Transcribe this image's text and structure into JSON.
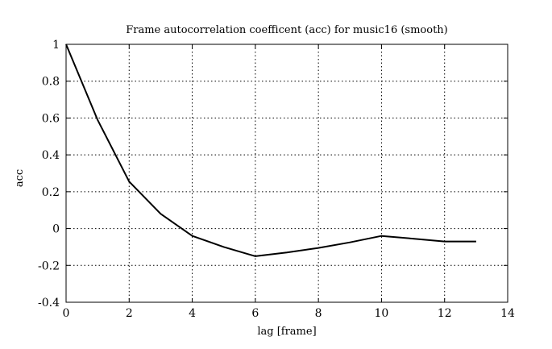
{
  "chart_data": {
    "type": "line",
    "title": "Frame autocorrelation coefficent (acc) for music16 (smooth)",
    "xlabel": "lag [frame]",
    "ylabel": "acc",
    "xlim": [
      0,
      14
    ],
    "ylim": [
      -0.4,
      1
    ],
    "xticks": [
      0,
      2,
      4,
      6,
      8,
      10,
      12,
      14
    ],
    "yticks": [
      -0.4,
      -0.2,
      0,
      0.2,
      0.4,
      0.6,
      0.8,
      1
    ],
    "xtick_labels": [
      "0",
      "2",
      "4",
      "6",
      "8",
      "10",
      "12",
      "14"
    ],
    "ytick_labels": [
      "-0.4",
      "-0.2",
      "0",
      "0.2",
      "0.4",
      "0.6",
      "0.8",
      "1"
    ],
    "grid": true,
    "series": [
      {
        "x": [
          0,
          1,
          2,
          3,
          4,
          5,
          6,
          7,
          8,
          9,
          10,
          11,
          12,
          13
        ],
        "values": [
          1.0,
          0.59,
          0.255,
          0.08,
          -0.04,
          -0.1,
          -0.15,
          -0.13,
          -0.105,
          -0.075,
          -0.04,
          -0.055,
          -0.07,
          -0.07
        ],
        "color": "#000000"
      }
    ]
  }
}
